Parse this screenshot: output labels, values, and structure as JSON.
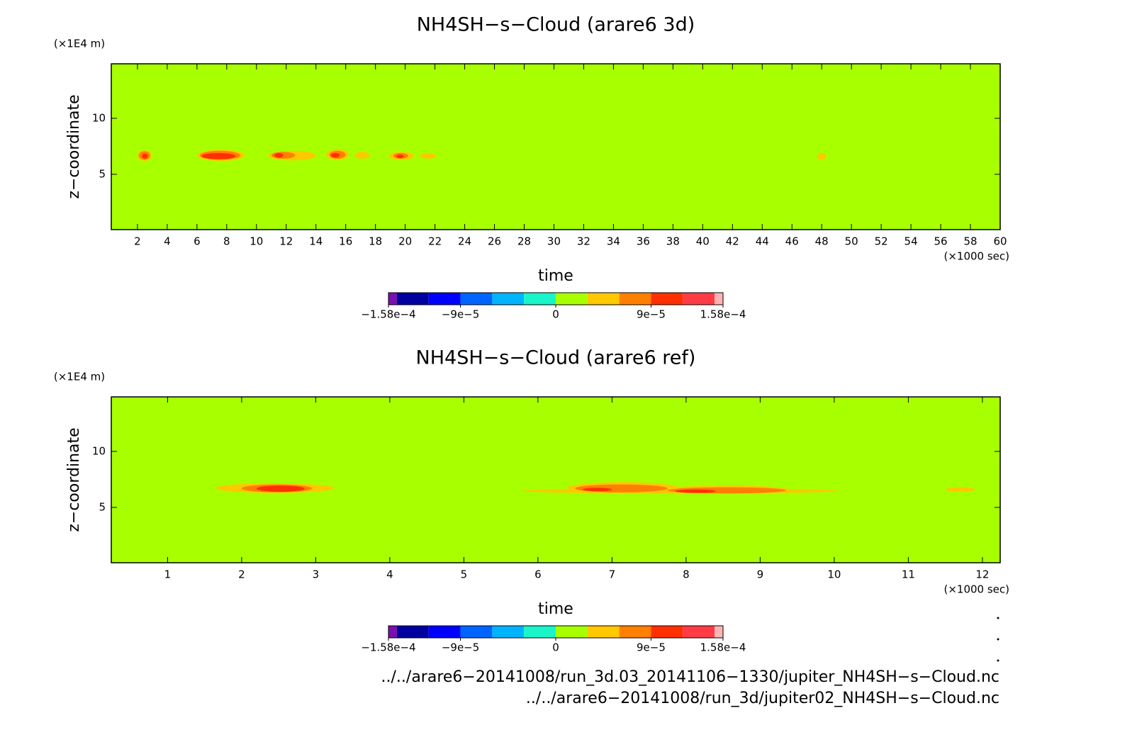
{
  "chart_data": [
    {
      "type": "contour",
      "title": "NH4SH−s−Cloud (arare6 3d)",
      "y_unit": "(×1E4 m)",
      "y_label": "z−coordinate",
      "x_label": "time",
      "x_unit": "(×1000 sec)",
      "xlim": [
        0.24,
        60
      ],
      "ylim": [
        0.06,
        14.87
      ],
      "xticks": [
        2,
        4,
        6,
        8,
        10,
        12,
        14,
        16,
        18,
        20,
        22,
        24,
        26,
        28,
        30,
        32,
        34,
        36,
        38,
        40,
        42,
        44,
        46,
        48,
        50,
        52,
        54,
        56,
        58,
        60
      ],
      "yticks": [
        5,
        10
      ],
      "colorbar": {
        "levels": [
          -0.000158,
          -0.00015,
          -0.00012,
          -9e-05,
          -6e-05,
          -3e-05,
          0,
          3e-05,
          6e-05,
          9e-05,
          0.00012,
          0.00015,
          0.000158
        ],
        "colors": [
          "#7a10b0",
          "#0000a0",
          "#0000ff",
          "#0064ff",
          "#00b4ff",
          "#19f5c8",
          "#a8ff00",
          "#ffc800",
          "#ff8000",
          "#ff3000",
          "#ff3c46",
          "#ffb4b4"
        ],
        "ticks": [
          {
            "value": -0.000158,
            "label": "−1.58e−4"
          },
          {
            "value": -9e-05,
            "label": "−9e−5"
          },
          0,
          {
            "value": 9e-05,
            "label": "9e−5"
          },
          {
            "value": 0.000158,
            "label": "1.58e−4"
          }
        ]
      },
      "patches": [
        {
          "x": [
            2.0,
            2.95
          ],
          "z": [
            6.2,
            7.15
          ],
          "value": 4.5e-05
        },
        {
          "x": [
            6.0,
            9.2
          ],
          "z": [
            6.2,
            7.2
          ],
          "value": 4.5e-05
        },
        {
          "x": [
            10.8,
            14.0
          ],
          "z": [
            6.25,
            7.1
          ],
          "value": 4.5e-05
        },
        {
          "x": [
            14.7,
            16.2
          ],
          "z": [
            6.3,
            7.25
          ],
          "value": 4.5e-05
        },
        {
          "x": [
            16.6,
            17.6
          ],
          "z": [
            6.4,
            7.0
          ],
          "value": 4.5e-05
        },
        {
          "x": [
            18.9,
            20.6
          ],
          "z": [
            6.3,
            7.0
          ],
          "value": 4.5e-05
        },
        {
          "x": [
            21.0,
            22.1
          ],
          "z": [
            6.4,
            6.9
          ],
          "value": 4.5e-05
        },
        {
          "x": [
            47.7,
            48.3
          ],
          "z": [
            6.3,
            6.9
          ],
          "value": 4.5e-05
        },
        {
          "x": [
            2.1,
            2.85
          ],
          "z": [
            6.3,
            7.05
          ],
          "value": 7.5e-05
        },
        {
          "x": [
            6.2,
            8.9
          ],
          "z": [
            6.3,
            7.1
          ],
          "value": 7.5e-05
        },
        {
          "x": [
            11.0,
            12.6
          ],
          "z": [
            6.4,
            7.0
          ],
          "value": 7.5e-05
        },
        {
          "x": [
            14.9,
            16.0
          ],
          "z": [
            6.4,
            7.1
          ],
          "value": 7.5e-05
        },
        {
          "x": [
            19.2,
            20.2
          ],
          "z": [
            6.4,
            6.9
          ],
          "value": 7.5e-05
        },
        {
          "x": [
            2.3,
            2.7
          ],
          "z": [
            6.4,
            6.85
          ],
          "value": 0.000105
        },
        {
          "x": [
            6.3,
            8.6
          ],
          "z": [
            6.35,
            6.9
          ],
          "value": 0.000105
        },
        {
          "x": [
            11.2,
            11.8
          ],
          "z": [
            6.5,
            6.9
          ],
          "value": 0.000105
        },
        {
          "x": [
            15.0,
            15.6
          ],
          "z": [
            6.5,
            6.9
          ],
          "value": 0.000105
        },
        {
          "x": [
            19.4,
            19.9
          ],
          "z": [
            6.45,
            6.75
          ],
          "value": 0.000105
        }
      ]
    },
    {
      "type": "contour",
      "title": "NH4SH−s−Cloud (arare6 ref)",
      "y_unit": "(×1E4 m)",
      "y_label": "z−coordinate",
      "x_label": "time",
      "x_unit": "(×1000 sec)",
      "xlim": [
        0.24,
        12.24
      ],
      "ylim": [
        0.06,
        14.87
      ],
      "xticks": [
        1,
        2,
        3,
        4,
        5,
        6,
        7,
        8,
        9,
        10,
        11,
        12
      ],
      "yticks": [
        5,
        10
      ],
      "colorbar": {
        "levels": [
          -0.000158,
          -0.00015,
          -0.00012,
          -9e-05,
          -6e-05,
          -3e-05,
          0,
          3e-05,
          6e-05,
          9e-05,
          0.00012,
          0.00015,
          0.000158
        ],
        "colors": [
          "#7a10b0",
          "#0000a0",
          "#0000ff",
          "#0064ff",
          "#00b4ff",
          "#19f5c8",
          "#a8ff00",
          "#ffc800",
          "#ff8000",
          "#ff3000",
          "#ff3c46",
          "#ffb4b4"
        ],
        "ticks": [
          {
            "value": -0.000158,
            "label": "−1.58e−4"
          },
          {
            "value": -9e-05,
            "label": "−9e−5"
          },
          0,
          {
            "value": 9e-05,
            "label": "9e−5"
          },
          {
            "value": 0.000158,
            "label": "1.58e−4"
          }
        ]
      },
      "patches": [
        {
          "x": [
            1.65,
            3.25
          ],
          "z": [
            6.3,
            7.15
          ],
          "value": 4.5e-05
        },
        {
          "x": [
            5.8,
            10.05
          ],
          "z": [
            6.25,
            6.7
          ],
          "value": 4.5e-05
        },
        {
          "x": [
            6.4,
            7.9
          ],
          "z": [
            6.25,
            7.25
          ],
          "value": 4.5e-05
        },
        {
          "x": [
            7.7,
            9.4
          ],
          "z": [
            6.2,
            6.95
          ],
          "value": 4.5e-05
        },
        {
          "x": [
            11.5,
            11.9
          ],
          "z": [
            6.4,
            6.8
          ],
          "value": 4.5e-05
        },
        {
          "x": [
            2.0,
            2.95
          ],
          "z": [
            6.35,
            7.05
          ],
          "value": 7.5e-05
        },
        {
          "x": [
            6.5,
            7.75
          ],
          "z": [
            6.35,
            7.05
          ],
          "value": 7.5e-05
        },
        {
          "x": [
            7.75,
            9.35
          ],
          "z": [
            6.25,
            6.8
          ],
          "value": 7.5e-05
        },
        {
          "x": [
            2.2,
            2.85
          ],
          "z": [
            6.4,
            6.95
          ],
          "value": 0.000105
        },
        {
          "x": [
            6.6,
            7.0
          ],
          "z": [
            6.45,
            6.75
          ],
          "value": 0.000105
        },
        {
          "x": [
            7.85,
            8.4
          ],
          "z": [
            6.3,
            6.6
          ],
          "value": 0.000105
        }
      ]
    }
  ],
  "footer": [
    "../../arare6−20141008/run_3d.03_20141106−1330/jupiter_NH4SH−s−Cloud.nc",
    "../../arare6−20141008/run_3d/jupiter02_NH4SH−s−Cloud.nc"
  ]
}
